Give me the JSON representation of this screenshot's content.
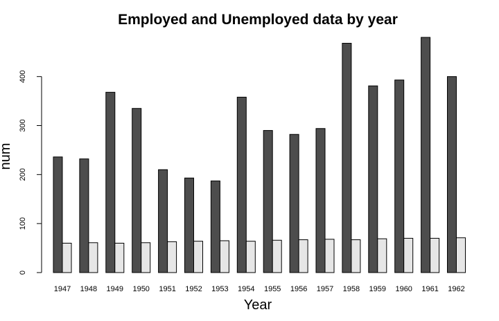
{
  "chart_data": {
    "type": "bar",
    "title": "Employed and Unemployed data by year",
    "xlabel": "Year",
    "ylabel": "num",
    "categories": [
      "1947",
      "1948",
      "1949",
      "1950",
      "1951",
      "1952",
      "1953",
      "1954",
      "1955",
      "1956",
      "1957",
      "1958",
      "1959",
      "1960",
      "1961",
      "1962"
    ],
    "series": [
      {
        "color": "#4d4d4d",
        "values": [
          236,
          232,
          368,
          335,
          210,
          193,
          187,
          358,
          290,
          282,
          294,
          468,
          381,
          393,
          480,
          400
        ]
      },
      {
        "color": "#e6e6e6",
        "values": [
          60,
          61,
          60,
          61,
          63,
          64,
          65,
          64,
          66,
          67,
          68,
          67,
          69,
          70,
          70,
          71
        ]
      }
    ],
    "yticks": [
      0,
      100,
      200,
      300,
      400
    ],
    "ylim": [
      0,
      480
    ],
    "grid": false,
    "legend": "none"
  }
}
